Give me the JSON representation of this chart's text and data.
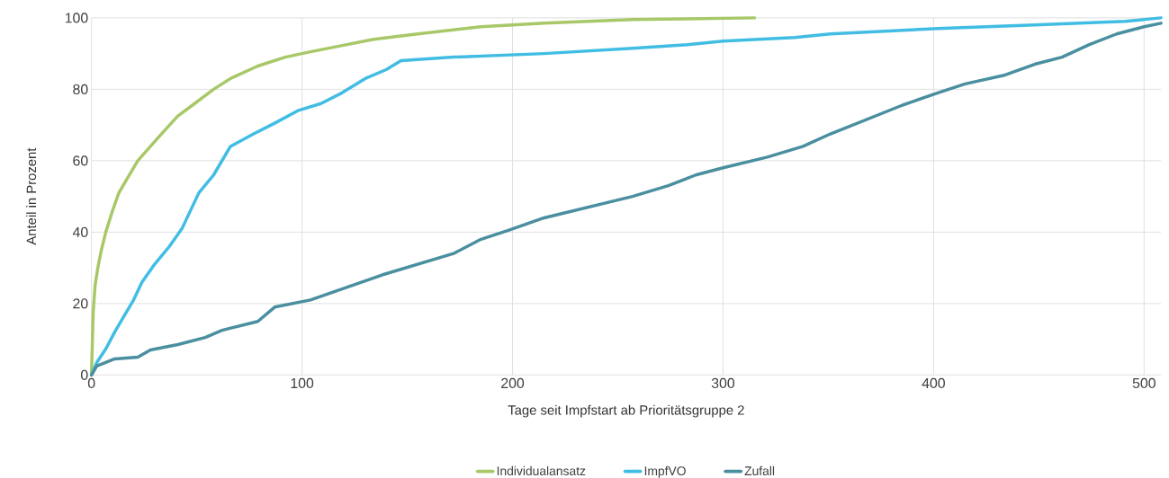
{
  "chart_data": {
    "type": "line",
    "xlabel": "Tage seit Impfstart ab Prioritätsgruppe 2",
    "ylabel": "Anteil in Prozent",
    "xlim": [
      0,
      508
    ],
    "ylim": [
      0,
      100
    ],
    "xticks": [
      0,
      100,
      200,
      300,
      400,
      500
    ],
    "yticks": [
      0,
      20,
      40,
      60,
      80,
      100
    ],
    "grid": true,
    "legend": "bottom",
    "marker": "none",
    "line_style": "solid",
    "series": [
      {
        "name": "Individualansatz",
        "color": "#a8c868",
        "x": [
          0,
          0.8,
          1.7,
          3,
          4.7,
          6.8,
          10,
          13,
          17,
          22,
          28,
          34,
          41,
          49,
          58,
          66,
          79,
          92,
          104,
          117,
          134,
          155,
          185,
          215,
          257,
          315
        ],
        "values": [
          0,
          17.5,
          25,
          30,
          35,
          40,
          46,
          51,
          55,
          60,
          64,
          68,
          72.5,
          76,
          80,
          83,
          86.5,
          89,
          90.5,
          92,
          94,
          95.5,
          97.5,
          98.5,
          99.5,
          100
        ]
      },
      {
        "name": "ImpfVO",
        "color": "#41bde4",
        "x": [
          0,
          2.5,
          7,
          11,
          15,
          20,
          24,
          30,
          37,
          43,
          47,
          51,
          58,
          62,
          66,
          77,
          87,
          98,
          109,
          119,
          130,
          140,
          147,
          172,
          215,
          257,
          283,
          300,
          334,
          351,
          402,
          448,
          491,
          508
        ],
        "values": [
          0,
          3.5,
          7.5,
          12,
          16,
          21,
          26,
          31,
          36,
          41,
          46,
          51,
          56,
          60,
          64,
          67.5,
          70.5,
          74,
          76,
          79,
          83,
          85.5,
          88,
          89,
          90,
          91.5,
          92.5,
          93.5,
          94.5,
          95.5,
          97,
          98,
          99,
          100
        ]
      },
      {
        "name": "Zufall",
        "color": "#4a8fa0",
        "x": [
          0,
          2.5,
          11,
          22,
          28,
          41,
          54,
          62,
          79,
          87,
          104,
          121,
          138,
          155,
          172,
          185,
          198,
          215,
          236,
          257,
          274,
          287,
          300,
          321,
          338,
          351,
          368,
          385,
          402,
          415,
          434,
          448,
          461,
          474,
          487,
          500,
          508
        ],
        "values": [
          0,
          2.5,
          4.5,
          5,
          7,
          8.5,
          10.5,
          12.5,
          15,
          19,
          21,
          24.5,
          28,
          31,
          34,
          38,
          40.5,
          44,
          47,
          50,
          53,
          56,
          58,
          61,
          64,
          67.5,
          71.5,
          75.5,
          79,
          81.5,
          84,
          87,
          89,
          92.5,
          95.5,
          97.5,
          98.5
        ]
      }
    ]
  }
}
